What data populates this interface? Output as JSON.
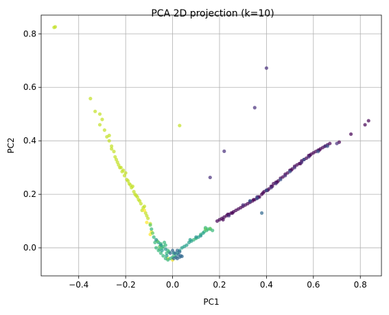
{
  "chart_data": {
    "type": "scatter",
    "title": "PCA 2D projection (k=10)",
    "xlabel": "PC1",
    "ylabel": "PC2",
    "xlim": [
      -0.56,
      0.89
    ],
    "ylim": [
      -0.105,
      0.87
    ],
    "grid": true,
    "legend": "none",
    "x_ticks": [
      -0.4,
      -0.2,
      0.0,
      0.2,
      0.4,
      0.6,
      0.8
    ],
    "x_tick_labels": [
      "−0.4",
      "−0.2",
      "0.0",
      "0.2",
      "0.4",
      "0.6",
      "0.8"
    ],
    "y_ticks": [
      0.0,
      0.2,
      0.4,
      0.6,
      0.8
    ],
    "y_tick_labels": [
      "0.0",
      "0.2",
      "0.4",
      "0.6",
      "0.8"
    ],
    "colormap": "viridis",
    "marker_alpha": 0.7,
    "series": [
      {
        "color": "#c2df23",
        "points": [
          [
            -0.5,
            0.826
          ],
          [
            -0.505,
            0.824
          ],
          [
            -0.35,
            0.558
          ],
          [
            -0.33,
            0.51
          ],
          [
            -0.31,
            0.5
          ],
          [
            -0.3,
            0.48
          ],
          [
            -0.31,
            0.46
          ],
          [
            -0.29,
            0.44
          ],
          [
            -0.28,
            0.415
          ],
          [
            -0.27,
            0.4
          ],
          [
            -0.26,
            0.38
          ],
          [
            -0.25,
            0.36
          ],
          [
            -0.245,
            0.34
          ],
          [
            -0.235,
            0.32
          ],
          [
            -0.225,
            0.3
          ],
          [
            -0.215,
            0.285
          ],
          [
            -0.205,
            0.27
          ],
          [
            -0.195,
            0.255
          ],
          [
            -0.185,
            0.24
          ],
          [
            -0.175,
            0.225
          ],
          [
            -0.165,
            0.21
          ],
          [
            -0.155,
            0.195
          ],
          [
            -0.145,
            0.18
          ],
          [
            -0.135,
            0.165
          ],
          [
            -0.125,
            0.15
          ],
          [
            -0.115,
            0.13
          ],
          [
            -0.105,
            0.11
          ],
          [
            -0.095,
            0.09
          ],
          [
            -0.23,
            0.31
          ],
          [
            -0.2,
            0.28
          ],
          [
            -0.22,
            0.3
          ],
          [
            -0.19,
            0.25
          ],
          [
            -0.17,
            0.23
          ],
          [
            -0.16,
            0.2
          ],
          [
            -0.14,
            0.175
          ],
          [
            -0.12,
            0.155
          ],
          [
            -0.13,
            0.14
          ],
          [
            -0.11,
            0.12
          ],
          [
            -0.26,
            0.37
          ],
          [
            -0.27,
            0.42
          ],
          [
            -0.24,
            0.33
          ],
          [
            -0.21,
            0.29
          ],
          [
            -0.18,
            0.235
          ],
          [
            -0.15,
            0.19
          ],
          [
            0.03,
            0.457
          ]
        ]
      },
      {
        "color": "#fde725",
        "points": [
          [
            -0.12,
            0.14
          ],
          [
            -0.09,
            0.06
          ],
          [
            -0.11,
            0.095
          ],
          [
            -0.095,
            0.05
          ],
          [
            -0.02,
            -0.04
          ],
          [
            0.0,
            -0.045
          ]
        ]
      },
      {
        "color": "#35b779",
        "points": [
          [
            -0.09,
            0.07
          ],
          [
            -0.08,
            0.04
          ],
          [
            -0.075,
            0.02
          ],
          [
            -0.07,
            0.0
          ],
          [
            -0.06,
            -0.01
          ],
          [
            -0.05,
            -0.02
          ],
          [
            -0.04,
            -0.03
          ],
          [
            -0.03,
            -0.04
          ],
          [
            -0.02,
            -0.045
          ],
          [
            -0.01,
            -0.04
          ],
          [
            -0.035,
            0.02
          ],
          [
            -0.045,
            0.0
          ],
          [
            -0.025,
            -0.02
          ],
          [
            -0.05,
            0.015
          ],
          [
            -0.03,
            0.01
          ],
          [
            0.0,
            -0.035
          ],
          [
            0.01,
            -0.03
          ],
          [
            -0.015,
            -0.015
          ],
          [
            -0.04,
            0.005
          ],
          [
            -0.02,
            -0.01
          ],
          [
            -0.055,
            -0.005
          ],
          [
            0.09,
            0.03
          ],
          [
            0.1,
            0.035
          ],
          [
            0.12,
            0.05
          ],
          [
            0.14,
            0.075
          ],
          [
            0.15,
            0.07
          ],
          [
            0.16,
            0.07
          ],
          [
            0.145,
            0.065
          ],
          [
            0.135,
            0.06
          ],
          [
            0.17,
            0.065
          ]
        ]
      },
      {
        "color": "#1f9e89",
        "points": [
          [
            -0.06,
            0.02
          ],
          [
            -0.045,
            -0.01
          ],
          [
            -0.025,
            -0.03
          ],
          [
            0.005,
            -0.02
          ],
          [
            0.02,
            -0.02
          ],
          [
            0.03,
            -0.01
          ],
          [
            0.04,
            0.0
          ],
          [
            0.06,
            0.01
          ],
          [
            0.07,
            0.02
          ],
          [
            0.08,
            0.025
          ],
          [
            0.11,
            0.04
          ],
          [
            0.13,
            0.055
          ],
          [
            0.075,
            0.03
          ],
          [
            0.05,
            0.005
          ]
        ]
      },
      {
        "color": "#31688e",
        "points": [
          [
            -0.01,
            -0.02
          ],
          [
            0.0,
            -0.01
          ],
          [
            0.01,
            -0.02
          ],
          [
            0.015,
            -0.035
          ],
          [
            0.025,
            -0.025
          ],
          [
            0.035,
            -0.03
          ],
          [
            0.02,
            -0.04
          ],
          [
            0.03,
            -0.035
          ],
          [
            0.04,
            -0.032
          ],
          [
            0.38,
            0.13
          ],
          [
            0.33,
            0.175
          ],
          [
            0.005,
            -0.04
          ],
          [
            0.02,
            -0.01
          ],
          [
            0.03,
            -0.015
          ]
        ]
      },
      {
        "color": "#440154",
        "points": [
          [
            0.19,
            0.1
          ],
          [
            0.2,
            0.105
          ],
          [
            0.21,
            0.11
          ],
          [
            0.22,
            0.115
          ],
          [
            0.23,
            0.12
          ],
          [
            0.24,
            0.125
          ],
          [
            0.25,
            0.13
          ],
          [
            0.26,
            0.135
          ],
          [
            0.27,
            0.14
          ],
          [
            0.28,
            0.145
          ],
          [
            0.29,
            0.15
          ],
          [
            0.3,
            0.155
          ],
          [
            0.31,
            0.16
          ],
          [
            0.32,
            0.165
          ],
          [
            0.33,
            0.17
          ],
          [
            0.34,
            0.175
          ],
          [
            0.35,
            0.18
          ],
          [
            0.36,
            0.185
          ],
          [
            0.37,
            0.19
          ],
          [
            0.38,
            0.2
          ],
          [
            0.39,
            0.21
          ],
          [
            0.4,
            0.215
          ],
          [
            0.41,
            0.22
          ],
          [
            0.42,
            0.23
          ],
          [
            0.43,
            0.24
          ],
          [
            0.44,
            0.245
          ],
          [
            0.45,
            0.25
          ],
          [
            0.46,
            0.26
          ],
          [
            0.47,
            0.265
          ],
          [
            0.48,
            0.275
          ],
          [
            0.49,
            0.28
          ],
          [
            0.5,
            0.29
          ],
          [
            0.51,
            0.295
          ],
          [
            0.52,
            0.305
          ],
          [
            0.53,
            0.31
          ],
          [
            0.54,
            0.315
          ],
          [
            0.55,
            0.325
          ],
          [
            0.56,
            0.33
          ],
          [
            0.57,
            0.335
          ],
          [
            0.58,
            0.345
          ],
          [
            0.59,
            0.35
          ],
          [
            0.6,
            0.355
          ],
          [
            0.61,
            0.36
          ],
          [
            0.62,
            0.365
          ],
          [
            0.63,
            0.37
          ],
          [
            0.64,
            0.375
          ],
          [
            0.65,
            0.38
          ],
          [
            0.66,
            0.385
          ],
          [
            0.67,
            0.39
          ],
          [
            0.71,
            0.395
          ],
          [
            0.76,
            0.425
          ],
          [
            0.82,
            0.46
          ],
          [
            0.835,
            0.475
          ],
          [
            0.215,
            0.105
          ],
          [
            0.235,
            0.125
          ],
          [
            0.255,
            0.13
          ],
          [
            0.345,
            0.18
          ],
          [
            0.365,
            0.19
          ],
          [
            0.385,
            0.205
          ],
          [
            0.405,
            0.215
          ],
          [
            0.425,
            0.23
          ],
          [
            0.445,
            0.245
          ],
          [
            0.505,
            0.29
          ],
          [
            0.545,
            0.315
          ],
          [
            0.585,
            0.345
          ],
          [
            0.625,
            0.365
          ]
        ]
      },
      {
        "color": "#472d7b",
        "points": [
          [
            0.4,
            0.672
          ],
          [
            0.35,
            0.524
          ],
          [
            0.22,
            0.361
          ],
          [
            0.16,
            0.263
          ],
          [
            0.24,
            0.12
          ],
          [
            0.3,
            0.16
          ],
          [
            0.36,
            0.19
          ],
          [
            0.44,
            0.24
          ],
          [
            0.52,
            0.3
          ],
          [
            0.58,
            0.34
          ],
          [
            0.65,
            0.38
          ],
          [
            0.7,
            0.39
          ],
          [
            0.42,
            0.225
          ],
          [
            0.48,
            0.27
          ],
          [
            0.55,
            0.32
          ]
        ]
      },
      {
        "color": "#3b528b",
        "points": [
          [
            0.33,
            0.175
          ],
          [
            0.36,
            0.185
          ],
          [
            0.4,
            0.215
          ],
          [
            0.46,
            0.255
          ],
          [
            0.5,
            0.285
          ],
          [
            0.56,
            0.33
          ],
          [
            0.62,
            0.36
          ],
          [
            0.66,
            0.38
          ]
        ]
      },
      {
        "color": "#5ec962",
        "points": [
          [
            -0.095,
            0.085
          ],
          [
            -0.085,
            0.055
          ],
          [
            -0.065,
            0.025
          ],
          [
            -0.055,
            0.005
          ],
          [
            0.14,
            0.07
          ],
          [
            0.16,
            0.072
          ]
        ]
      },
      {
        "color": "#21918c",
        "points": [
          [
            -0.07,
            0.03
          ],
          [
            -0.05,
            0.01
          ],
          [
            -0.03,
            -0.005
          ],
          [
            0.1,
            0.04
          ],
          [
            0.12,
            0.045
          ]
        ]
      }
    ]
  }
}
